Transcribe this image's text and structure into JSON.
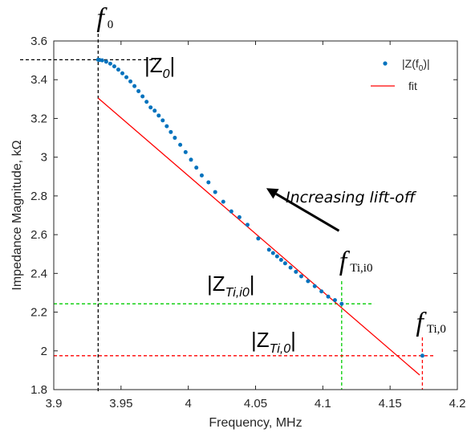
{
  "chart_data": {
    "type": "scatter",
    "xlabel": "Frequency, MHz",
    "ylabel": "Impedance Magnitude, kΩ",
    "xlim": [
      3.9,
      4.2
    ],
    "ylim": [
      1.8,
      3.6
    ],
    "x_ticks": [
      "3.9",
      "3.95",
      "4",
      "4.05",
      "4.1",
      "4.15",
      "4.2"
    ],
    "y_ticks": [
      "1.8",
      "2",
      "2.2",
      "2.4",
      "2.6",
      "2.8",
      "3",
      "3.2",
      "3.4",
      "3.6"
    ],
    "x_tick_values": [
      3.9,
      3.95,
      4.0,
      4.05,
      4.1,
      4.15,
      4.2
    ],
    "y_tick_values": [
      1.8,
      2.0,
      2.2,
      2.4,
      2.6,
      2.8,
      3.0,
      3.2,
      3.4,
      3.6
    ],
    "grid": false,
    "legend_position": "top-right",
    "series": [
      {
        "name": "|Z(f0)|",
        "legend_main": "|Z(f",
        "legend_sub": "0",
        "legend_close": ")|",
        "kind": "scatter",
        "color": "#0072BD",
        "x": [
          3.933,
          3.934,
          3.936,
          3.939,
          3.942,
          3.945,
          3.948,
          3.951,
          3.954,
          3.957,
          3.96,
          3.963,
          3.966,
          3.969,
          3.972,
          3.975,
          3.978,
          3.981,
          3.984,
          3.987,
          3.99,
          3.994,
          3.998,
          4.002,
          4.006,
          4.01,
          4.015,
          4.02,
          4.026,
          4.032,
          4.038,
          4.044,
          4.052,
          4.06,
          4.063,
          4.066,
          4.069,
          4.072,
          4.076,
          4.08,
          4.084,
          4.089,
          4.094,
          4.099,
          4.104,
          4.109,
          4.114,
          4.174
        ],
        "y": [
          3.503,
          3.502,
          3.5,
          3.493,
          3.483,
          3.469,
          3.452,
          3.433,
          3.413,
          3.391,
          3.367,
          3.341,
          3.314,
          3.286,
          3.257,
          3.24,
          3.215,
          3.19,
          3.16,
          3.13,
          3.1,
          3.064,
          3.026,
          2.987,
          2.946,
          2.906,
          2.87,
          2.82,
          2.77,
          2.72,
          2.69,
          2.651,
          2.58,
          2.522,
          2.505,
          2.488,
          2.47,
          2.452,
          2.43,
          2.408,
          2.385,
          2.36,
          2.334,
          2.307,
          2.28,
          2.262,
          2.243,
          1.975
        ]
      },
      {
        "name": "fit",
        "kind": "line",
        "color": "#FF0000",
        "x": [
          3.933,
          4.172
        ],
        "y": [
          3.305,
          1.875
        ]
      }
    ],
    "annotations": {
      "arrow_text": "Increasing lift-off",
      "arrow_from": [
        4.112,
        2.62
      ],
      "arrow_to": [
        4.058,
        2.84
      ],
      "f0": {
        "symbol": "f",
        "sub": "0",
        "x": 3.933,
        "color": "#000000"
      },
      "f_ti_i0": {
        "symbol": "f",
        "sub": "Ti,i0",
        "x": 4.114,
        "color": "#00CC00"
      },
      "f_ti_0": {
        "symbol": "f",
        "sub": "Ti,0",
        "x": 4.174,
        "color": "#FF0000"
      },
      "z0": {
        "text_main": "|Z",
        "text_sub": "0",
        "text_close": "|",
        "y": 3.503,
        "x_end": 3.965,
        "color": "#000000"
      },
      "z_ti_i0": {
        "text_main": "|Z",
        "text_sub": "Ti,i0",
        "text_close": "|",
        "y": 2.243,
        "x_end": 4.138,
        "color": "#00CC00"
      },
      "z_ti_0": {
        "text_main": "|Z",
        "text_sub": "Ti,0",
        "text_close": "|",
        "y": 1.975,
        "x_end": 4.183,
        "color": "#FF0000"
      }
    }
  }
}
